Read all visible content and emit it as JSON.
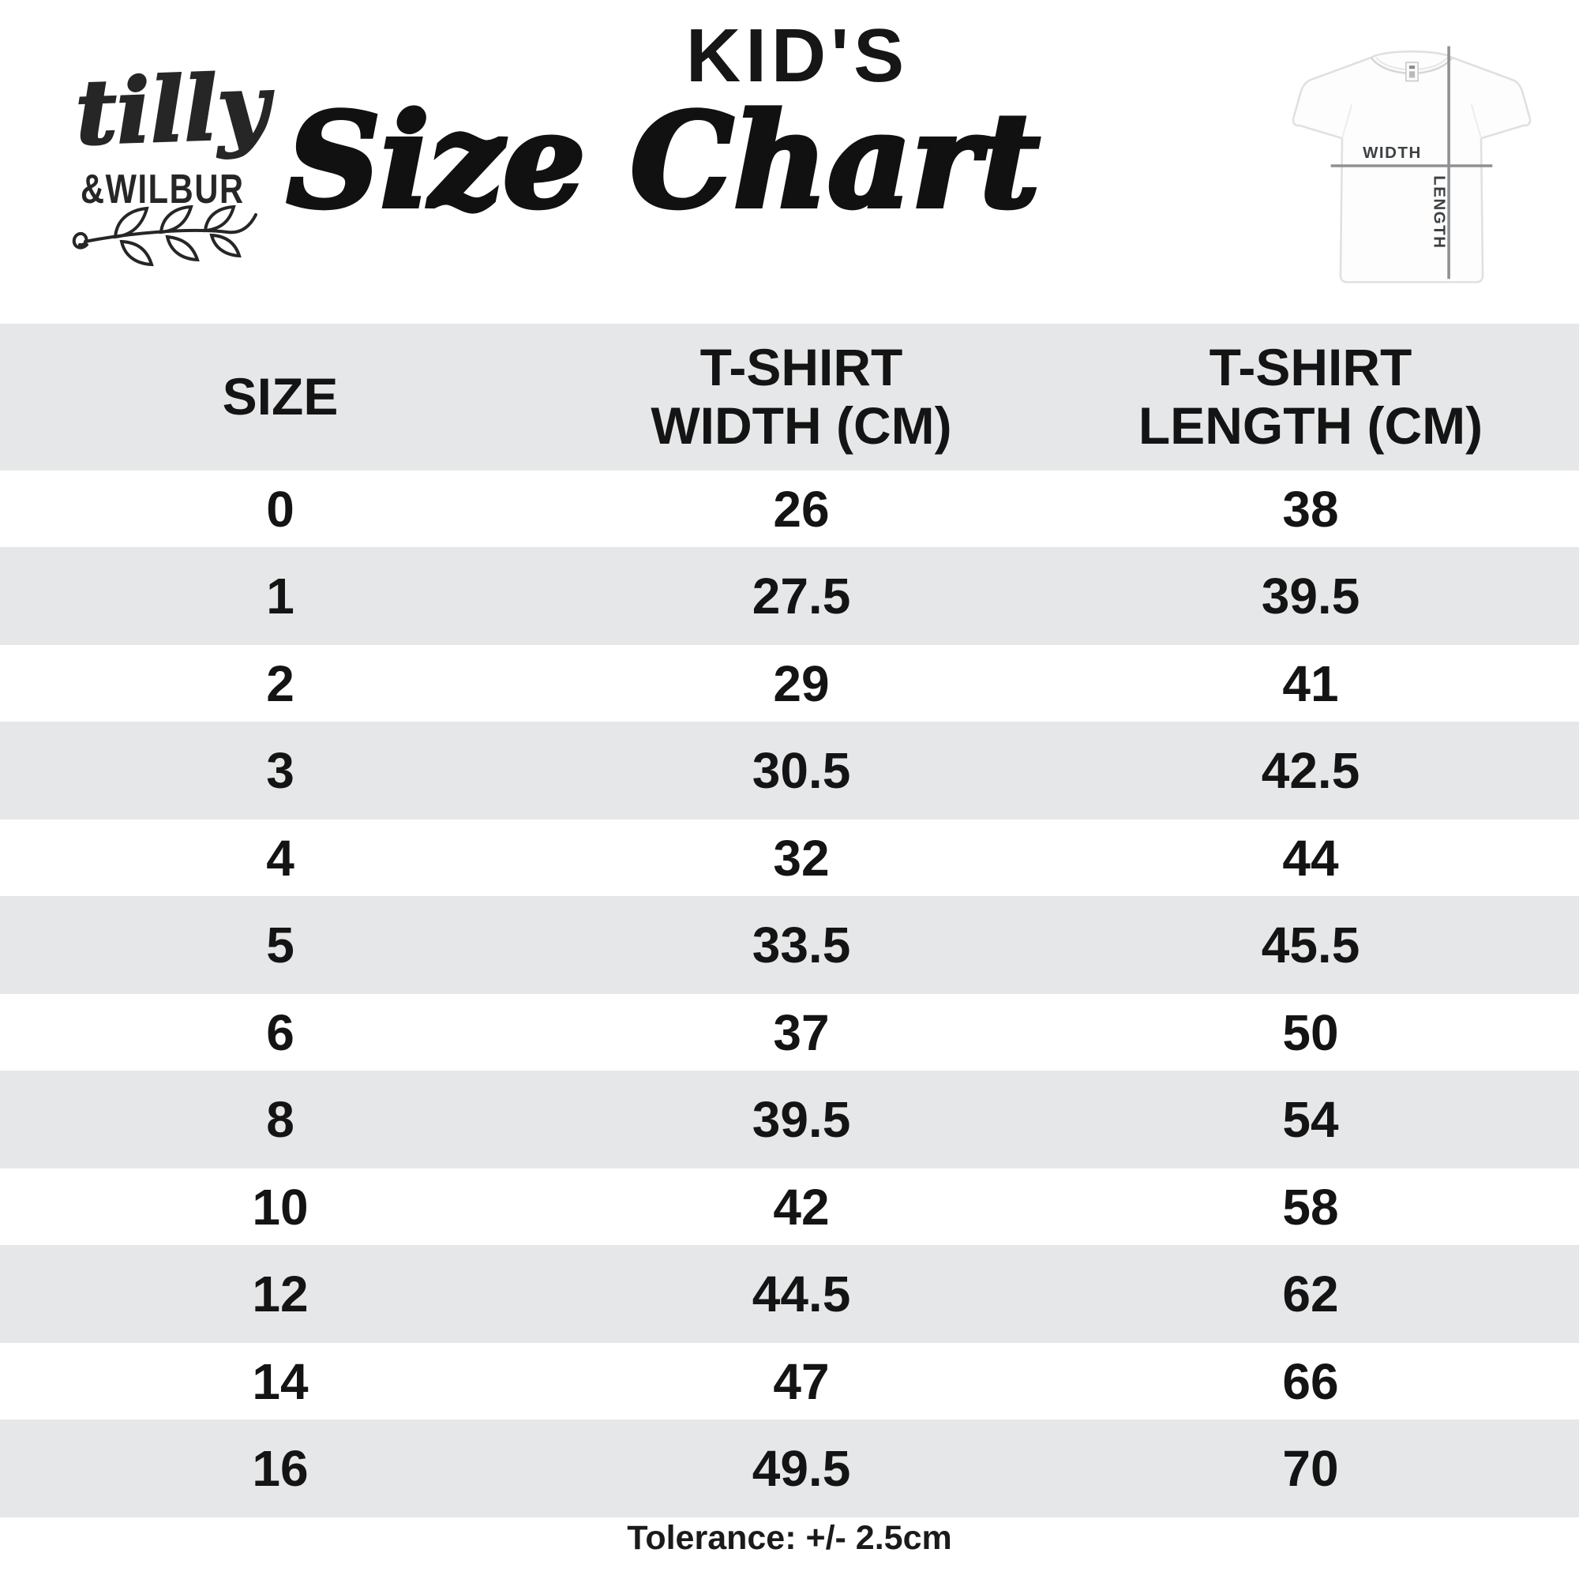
{
  "brand": {
    "script": "tilly",
    "caps": "&WILBUR"
  },
  "title": {
    "kicker": "KID'S",
    "main": "Size Chart"
  },
  "diagram": {
    "width_label": "WIDTH",
    "length_label": "LENGTH"
  },
  "table": {
    "columns": [
      "SIZE",
      "T-SHIRT WIDTH (CM)",
      "T-SHIRT LENGTH (CM)"
    ],
    "rows": [
      {
        "size": "0",
        "width": "26",
        "length": "38"
      },
      {
        "size": "1",
        "width": "27.5",
        "length": "39.5"
      },
      {
        "size": "2",
        "width": "29",
        "length": "41"
      },
      {
        "size": "3",
        "width": "30.5",
        "length": "42.5"
      },
      {
        "size": "4",
        "width": "32",
        "length": "44"
      },
      {
        "size": "5",
        "width": "33.5",
        "length": "45.5"
      },
      {
        "size": "6",
        "width": "37",
        "length": "50"
      },
      {
        "size": "8",
        "width": "39.5",
        "length": "54"
      },
      {
        "size": "10",
        "width": "42",
        "length": "58"
      },
      {
        "size": "12",
        "width": "44.5",
        "length": "62"
      },
      {
        "size": "14",
        "width": "47",
        "length": "66"
      },
      {
        "size": "16",
        "width": "49.5",
        "length": "70"
      }
    ]
  },
  "footer": {
    "tolerance": "Tolerance: +/- 2.5cm"
  },
  "colors": {
    "stripe": "#e6e7e8",
    "text": "#141414",
    "diagram_line": "#8e9194",
    "diagram_text": "#3c4043"
  },
  "chart_data": {
    "type": "table",
    "title": "KID'S Size Chart",
    "columns": [
      "SIZE",
      "T-SHIRT WIDTH (CM)",
      "T-SHIRT LENGTH (CM)"
    ],
    "rows": [
      [
        0,
        26,
        38
      ],
      [
        1,
        27.5,
        39.5
      ],
      [
        2,
        29,
        41
      ],
      [
        3,
        30.5,
        42.5
      ],
      [
        4,
        32,
        44
      ],
      [
        5,
        33.5,
        45.5
      ],
      [
        6,
        37,
        50
      ],
      [
        8,
        39.5,
        54
      ],
      [
        10,
        42,
        58
      ],
      [
        12,
        44.5,
        62
      ],
      [
        14,
        47,
        66
      ],
      [
        16,
        49.5,
        70
      ]
    ],
    "footnote": "Tolerance: +/- 2.5cm",
    "notes": "Alternating gray/white row stripes; header row gray; values in centimetres"
  }
}
